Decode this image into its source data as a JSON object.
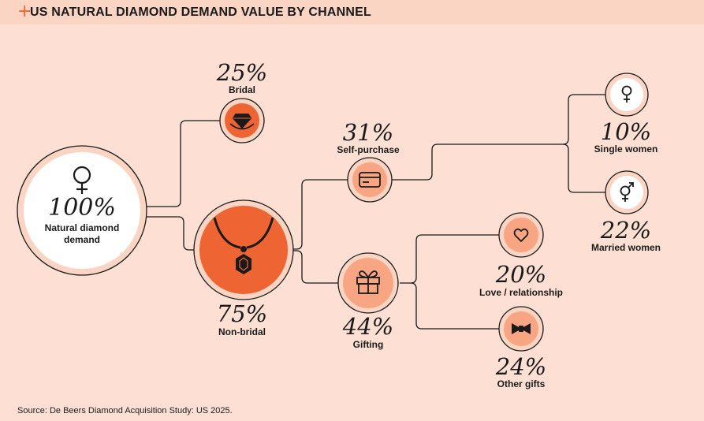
{
  "header": {
    "plus": "+",
    "title": "US NATURAL DIAMOND DEMAND VALUE BY CHANNEL"
  },
  "nodes": {
    "root": {
      "pct": "100%",
      "label_line1": "Natural diamond",
      "label_line2": "demand",
      "icon": "female-symbol-icon"
    },
    "bridal": {
      "pct": "25%",
      "label": "Bridal",
      "icon": "diamond-ring-icon"
    },
    "nonbridal": {
      "pct": "75%",
      "label": "Non-bridal",
      "icon": "pendant-necklace-icon"
    },
    "selfpurchase": {
      "pct": "31%",
      "label": "Self-purchase",
      "icon": "credit-card-icon"
    },
    "gifting": {
      "pct": "44%",
      "label": "Gifting",
      "icon": "gift-box-icon"
    },
    "single": {
      "pct": "10%",
      "label": "Single women",
      "icon": "female-symbol-icon"
    },
    "married": {
      "pct": "22%",
      "label": "Married women",
      "icon": "male-female-symbol-icon"
    },
    "love": {
      "pct": "20%",
      "label": "Love / relationship",
      "icon": "heart-icon"
    },
    "other": {
      "pct": "24%",
      "label": "Other gifts",
      "icon": "bow-tie-icon"
    }
  },
  "colors": {
    "accent": "#ef6433",
    "light_accent": "#f7a582",
    "background": "#fde0d3",
    "line": "#1a1a1a"
  },
  "footer": {
    "source": "Source: De Beers Diamond Acquisition Study: US 2025."
  }
}
